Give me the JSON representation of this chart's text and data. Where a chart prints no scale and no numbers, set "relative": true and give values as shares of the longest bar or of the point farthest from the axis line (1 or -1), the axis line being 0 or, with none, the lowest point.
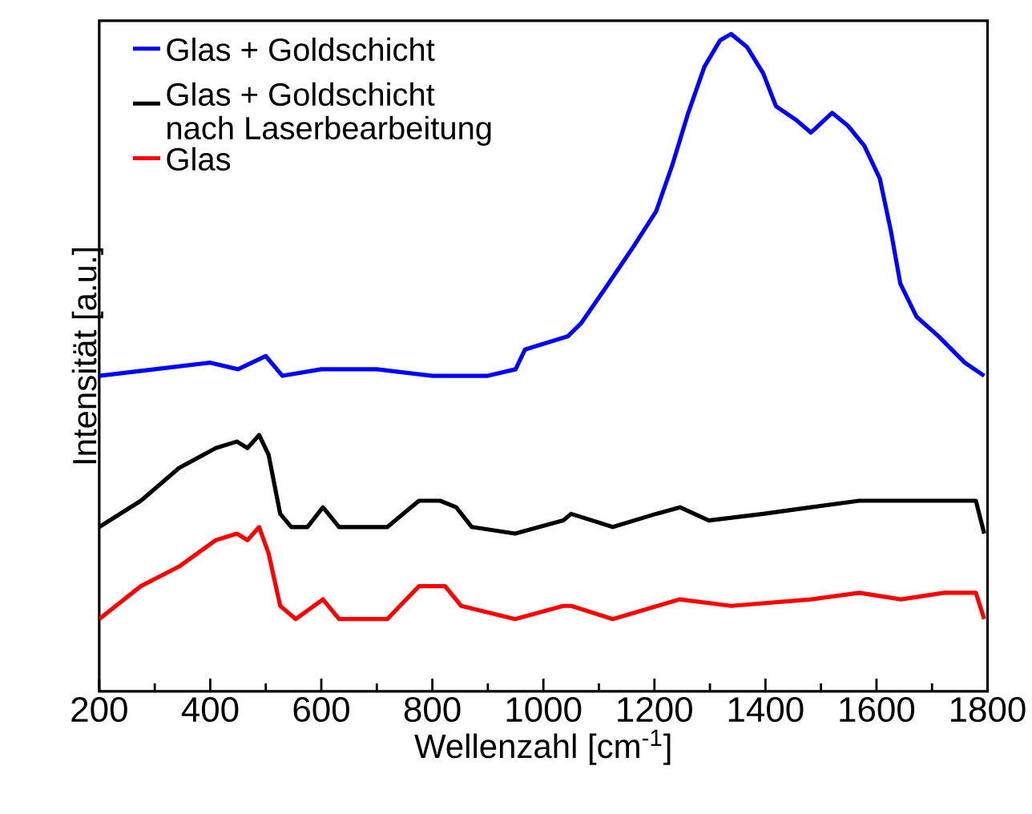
{
  "chart_data": {
    "type": "line",
    "relative": true,
    "xlabel": "Wellenzahl [cm$^{-1}$]",
    "ylabel": "Intensität [a.u.]",
    "xlim": [
      200,
      1800
    ],
    "xticks": [
      200,
      400,
      600,
      800,
      1000,
      1200,
      1400,
      1600,
      1800
    ],
    "legend": "top left",
    "grid": false,
    "marker": "none",
    "line_style": "solid",
    "series": [
      {
        "name": "Glas + Goldschicht",
        "color": "#0000ff",
        "x": [
          200,
          300,
          400,
          450,
          500,
          530,
          600,
          700,
          800,
          900,
          950,
          967,
          1044,
          1068,
          1117,
          1165,
          1203,
          1232,
          1261,
          1290,
          1318,
          1338,
          1367,
          1396,
          1419,
          1454,
          1482,
          1520,
          1549,
          1578,
          1606,
          1626,
          1643,
          1672,
          1712,
          1759,
          1794
        ],
        "values": [
          0.48,
          0.49,
          0.5,
          0.49,
          0.51,
          0.48,
          0.49,
          0.49,
          0.48,
          0.48,
          0.49,
          0.52,
          0.54,
          0.56,
          0.62,
          0.68,
          0.73,
          0.8,
          0.88,
          0.95,
          0.99,
          1.0,
          0.98,
          0.94,
          0.89,
          0.87,
          0.85,
          0.88,
          0.86,
          0.83,
          0.78,
          0.7,
          0.62,
          0.57,
          0.54,
          0.5,
          0.48
        ]
      },
      {
        "name": "Glas + Goldschicht nach Laserbearbeitung",
        "color": "#000000",
        "x": [
          200,
          275,
          344,
          410,
          448,
          467,
          488,
          505,
          526,
          546,
          575,
          603,
          632,
          719,
          776,
          814,
          843,
          871,
          949,
          1036,
          1050,
          1125,
          1203,
          1246,
          1298,
          1396,
          1482,
          1569,
          1644,
          1701,
          1779,
          1794
        ],
        "values": [
          0.25,
          0.29,
          0.34,
          0.37,
          0.38,
          0.37,
          0.39,
          0.36,
          0.27,
          0.25,
          0.25,
          0.28,
          0.25,
          0.25,
          0.29,
          0.29,
          0.28,
          0.25,
          0.24,
          0.26,
          0.27,
          0.25,
          0.27,
          0.28,
          0.26,
          0.27,
          0.28,
          0.29,
          0.29,
          0.29,
          0.29,
          0.24
        ]
      },
      {
        "name": "Glas",
        "color": "#ff0000",
        "x": [
          200,
          275,
          344,
          410,
          448,
          467,
          488,
          505,
          526,
          554,
          603,
          632,
          719,
          776,
          823,
          852,
          949,
          1036,
          1050,
          1125,
          1246,
          1338,
          1482,
          1569,
          1644,
          1722,
          1779,
          1794
        ],
        "values": [
          0.11,
          0.16,
          0.19,
          0.23,
          0.24,
          0.23,
          0.25,
          0.21,
          0.13,
          0.11,
          0.14,
          0.11,
          0.11,
          0.16,
          0.16,
          0.13,
          0.11,
          0.13,
          0.13,
          0.11,
          0.14,
          0.13,
          0.14,
          0.15,
          0.14,
          0.15,
          0.15,
          0.11
        ]
      }
    ]
  }
}
